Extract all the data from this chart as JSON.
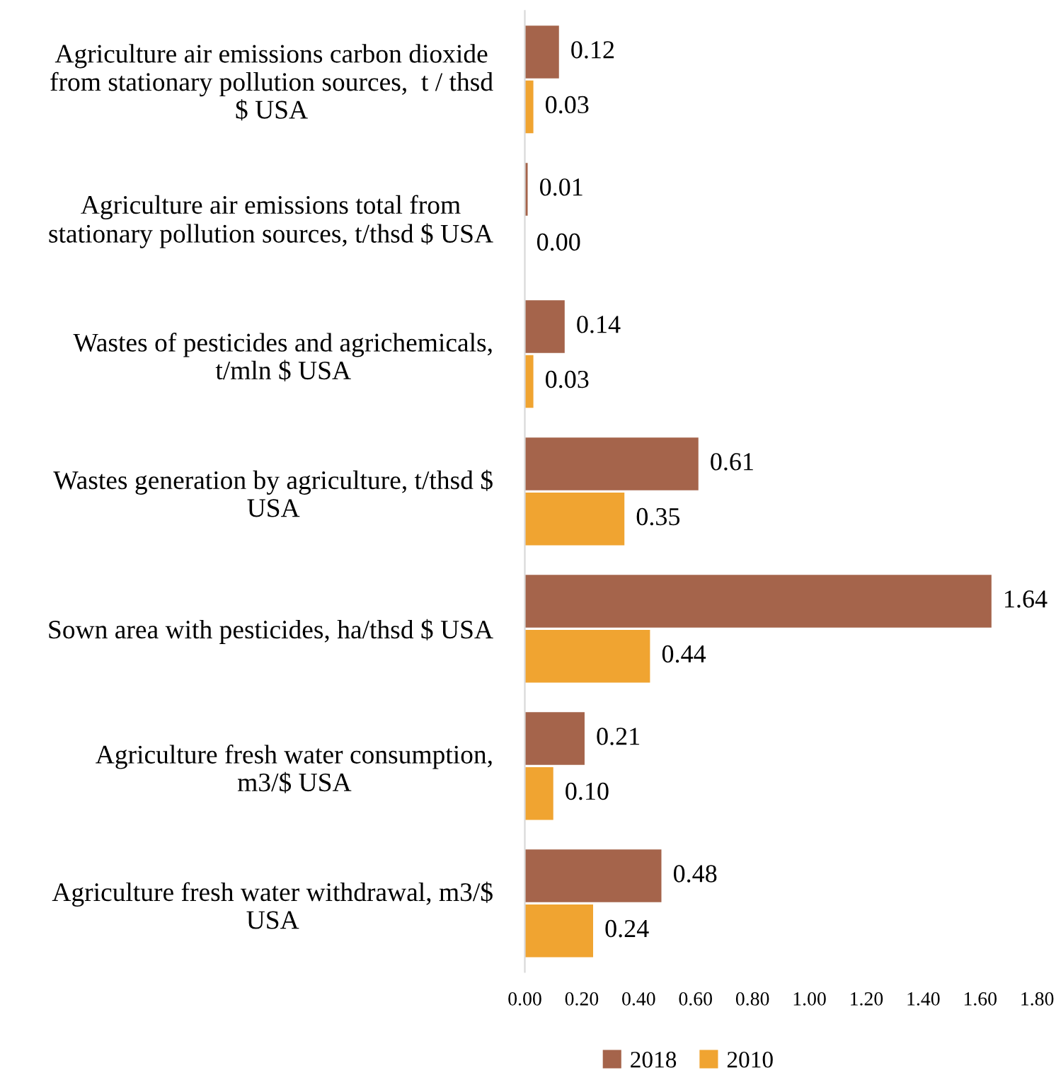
{
  "chart_data": {
    "type": "bar",
    "orientation": "horizontal",
    "categories": [
      "Agriculture air emissions carbon dioxide\nfrom stationary pollution sources,  t / thsd\n$ USA",
      "Agriculture air emissions total from\nstationary pollution sources, t/thsd $ USA",
      "Wastes of pesticides and agrichemicals,\nt/mln $ USA",
      "Wastes generation by agriculture, t/thsd $\nUSA",
      "Sown area with pesticides, ha/thsd $ USA",
      "Agriculture fresh water consumption,\nm3/$ USA",
      "Agriculture fresh water withdrawal, m3/$\nUSA"
    ],
    "series": [
      {
        "name": "2018",
        "color": "#a5644b",
        "values": [
          0.12,
          0.01,
          0.14,
          0.61,
          1.64,
          0.21,
          0.48
        ],
        "value_labels": [
          "0.12",
          "0.01",
          "0.14",
          "0.61",
          "1.64",
          "0.21",
          "0.48"
        ]
      },
      {
        "name": "2010",
        "color": "#f0a431",
        "values": [
          0.03,
          0.0,
          0.03,
          0.35,
          0.44,
          0.1,
          0.24
        ],
        "value_labels": [
          "0.03",
          "0.00",
          "0.03",
          "0.35",
          "0.44",
          "0.10",
          "0.24"
        ]
      }
    ],
    "xlim": [
      0,
      1.8
    ],
    "xticks": [
      {
        "value": 0,
        "label": "0.00"
      },
      {
        "value": 0.2,
        "label": "0.20"
      },
      {
        "value": 0.4,
        "label": "0.40"
      },
      {
        "value": 0.6,
        "label": "0.60"
      },
      {
        "value": 0.8,
        "label": "0.80"
      },
      {
        "value": 1.0,
        "label": "1.00"
      },
      {
        "value": 1.2,
        "label": "1.20"
      },
      {
        "value": 1.4,
        "label": "1.40"
      },
      {
        "value": 1.6,
        "label": "1.60"
      },
      {
        "value": 1.8,
        "label": "1.80"
      }
    ],
    "grid": false,
    "legend": "bottom"
  }
}
